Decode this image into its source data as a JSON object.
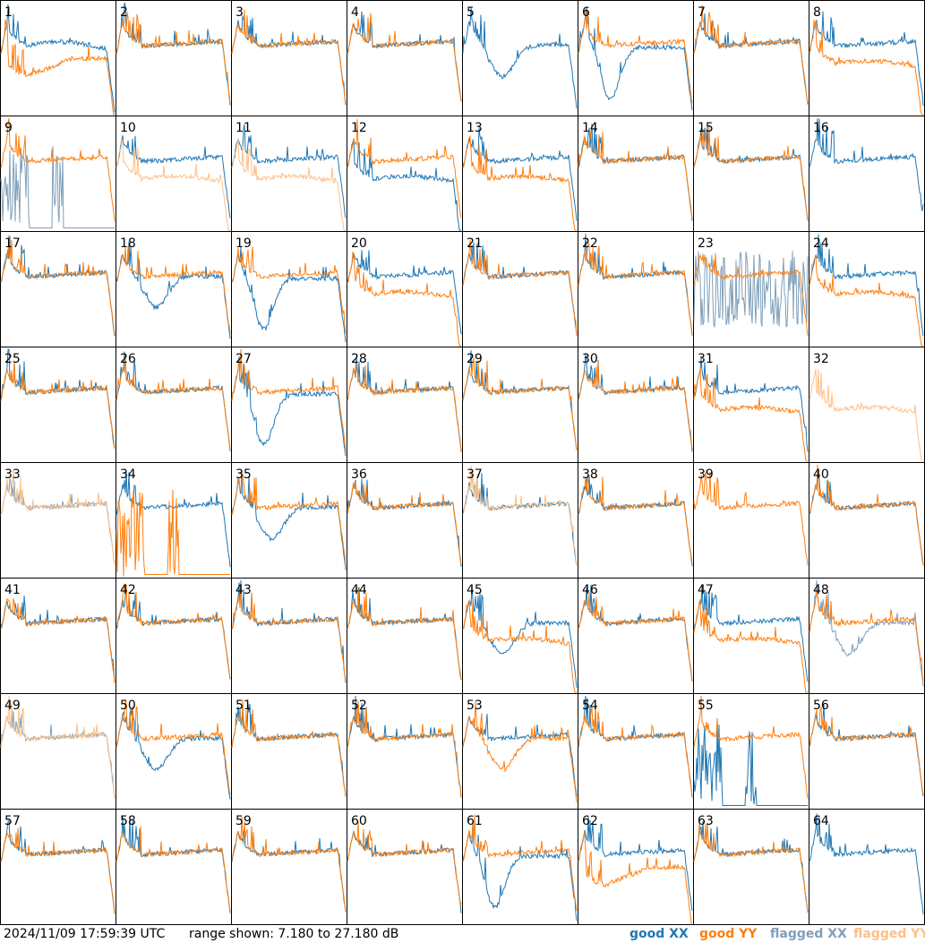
{
  "footer": {
    "timestamp": "2024/11/09 17:59:39 UTC",
    "range_text": "range shown: 7.180 to 27.180 dB"
  },
  "legend": {
    "good_xx": {
      "prefix": "good",
      "pol": "XX",
      "color": "#1f77b4"
    },
    "good_yy": {
      "prefix": "good",
      "pol": "YY",
      "color": "#ff7f0e"
    },
    "flagged_xx": {
      "prefix": "flagged",
      "pol": "XX",
      "color": "#7f9fba"
    },
    "flagged_yy": {
      "prefix": "flagged",
      "pol": "YY",
      "color": "#ffbf87"
    }
  },
  "chart_data": {
    "type": "line",
    "layout": "8x8 small multiples",
    "ylim": [
      7.18,
      27.18
    ],
    "yunits": "dB",
    "panels": [
      {
        "id": 1,
        "xx": "good",
        "yy": "good",
        "xx_shape": "hump",
        "yy_shape": "lowdip"
      },
      {
        "id": 2,
        "xx": "good",
        "yy": "good",
        "xx_shape": "plateau",
        "yy_shape": "plateau"
      },
      {
        "id": 3,
        "xx": "good",
        "yy": "good",
        "xx_shape": "plateau",
        "yy_shape": "plateau"
      },
      {
        "id": 4,
        "xx": "good",
        "yy": "good",
        "xx_shape": "plateau",
        "yy_shape": "plateau"
      },
      {
        "id": 5,
        "xx": "good",
        "yy": "none",
        "xx_shape": "dip",
        "yy_shape": "flat"
      },
      {
        "id": 6,
        "xx": "good",
        "yy": "good",
        "xx_shape": "deepdip",
        "yy_shape": "plateau"
      },
      {
        "id": 7,
        "xx": "good",
        "yy": "good",
        "xx_shape": "plateau",
        "yy_shape": "plateau"
      },
      {
        "id": 8,
        "xx": "good",
        "yy": "good",
        "xx_shape": "plateau",
        "yy_shape": "lowhump"
      },
      {
        "id": 9,
        "xx": "flagged",
        "yy": "good",
        "xx_shape": "spiky",
        "yy_shape": "plateau"
      },
      {
        "id": 10,
        "xx": "good",
        "yy": "flagged",
        "xx_shape": "plateau",
        "yy_shape": "lowhump"
      },
      {
        "id": 11,
        "xx": "good",
        "yy": "flagged",
        "xx_shape": "plateau",
        "yy_shape": "lowhump"
      },
      {
        "id": 12,
        "xx": "good",
        "yy": "good",
        "xx_shape": "lowhump",
        "yy_shape": "plateau"
      },
      {
        "id": 13,
        "xx": "good",
        "yy": "good",
        "xx_shape": "plateau",
        "yy_shape": "lowhump"
      },
      {
        "id": 14,
        "xx": "good",
        "yy": "good",
        "xx_shape": "plateau",
        "yy_shape": "plateau"
      },
      {
        "id": 15,
        "xx": "good",
        "yy": "good",
        "xx_shape": "plateau",
        "yy_shape": "plateau"
      },
      {
        "id": 16,
        "xx": "good",
        "yy": "none",
        "xx_shape": "plateau",
        "yy_shape": "flat"
      },
      {
        "id": 17,
        "xx": "good",
        "yy": "good",
        "xx_shape": "plateau",
        "yy_shape": "plateau"
      },
      {
        "id": 18,
        "xx": "good",
        "yy": "good",
        "xx_shape": "dip",
        "yy_shape": "plateau"
      },
      {
        "id": 19,
        "xx": "good",
        "yy": "good",
        "xx_shape": "deepdip",
        "yy_shape": "plateau"
      },
      {
        "id": 20,
        "xx": "good",
        "yy": "good",
        "xx_shape": "plateau",
        "yy_shape": "lowhump"
      },
      {
        "id": 21,
        "xx": "good",
        "yy": "good",
        "xx_shape": "plateau",
        "yy_shape": "plateau"
      },
      {
        "id": 22,
        "xx": "good",
        "yy": "good",
        "xx_shape": "plateau",
        "yy_shape": "plateau"
      },
      {
        "id": 23,
        "xx": "flagged",
        "yy": "good",
        "xx_shape": "noise",
        "yy_shape": "plateau"
      },
      {
        "id": 24,
        "xx": "good",
        "yy": "good",
        "xx_shape": "plateau",
        "yy_shape": "lowhump"
      },
      {
        "id": 25,
        "xx": "good",
        "yy": "good",
        "xx_shape": "plateau",
        "yy_shape": "plateau"
      },
      {
        "id": 26,
        "xx": "good",
        "yy": "good",
        "xx_shape": "plateau",
        "yy_shape": "plateau"
      },
      {
        "id": 27,
        "xx": "good",
        "yy": "good",
        "xx_shape": "deepdip",
        "yy_shape": "plateau"
      },
      {
        "id": 28,
        "xx": "good",
        "yy": "good",
        "xx_shape": "plateau",
        "yy_shape": "plateau"
      },
      {
        "id": 29,
        "xx": "good",
        "yy": "good",
        "xx_shape": "plateau",
        "yy_shape": "plateau"
      },
      {
        "id": 30,
        "xx": "good",
        "yy": "good",
        "xx_shape": "plateau",
        "yy_shape": "plateau"
      },
      {
        "id": 31,
        "xx": "good",
        "yy": "good",
        "xx_shape": "plateau",
        "yy_shape": "lowhump"
      },
      {
        "id": 32,
        "xx": "none",
        "yy": "flagged",
        "xx_shape": "flat",
        "yy_shape": "lowhump"
      },
      {
        "id": 33,
        "xx": "flagged",
        "yy": "flagged",
        "xx_shape": "plateau",
        "yy_shape": "plateau"
      },
      {
        "id": 34,
        "xx": "good",
        "yy": "good",
        "xx_shape": "plateau",
        "yy_shape": "spiky"
      },
      {
        "id": 35,
        "xx": "good",
        "yy": "good",
        "xx_shape": "dip",
        "yy_shape": "plateau"
      },
      {
        "id": 36,
        "xx": "good",
        "yy": "good",
        "xx_shape": "plateau",
        "yy_shape": "plateau"
      },
      {
        "id": 37,
        "xx": "good",
        "yy": "flagged",
        "xx_shape": "plateau",
        "yy_shape": "plateau"
      },
      {
        "id": 38,
        "xx": "good",
        "yy": "good",
        "xx_shape": "plateau",
        "yy_shape": "plateau"
      },
      {
        "id": 39,
        "xx": "none",
        "yy": "good",
        "xx_shape": "flat",
        "yy_shape": "plateau"
      },
      {
        "id": 40,
        "xx": "good",
        "yy": "good",
        "xx_shape": "plateau",
        "yy_shape": "plateau"
      },
      {
        "id": 41,
        "xx": "good",
        "yy": "good",
        "xx_shape": "plateau",
        "yy_shape": "plateau"
      },
      {
        "id": 42,
        "xx": "good",
        "yy": "good",
        "xx_shape": "plateau",
        "yy_shape": "plateau"
      },
      {
        "id": 43,
        "xx": "good",
        "yy": "good",
        "xx_shape": "plateau",
        "yy_shape": "plateau"
      },
      {
        "id": 44,
        "xx": "good",
        "yy": "good",
        "xx_shape": "plateau",
        "yy_shape": "plateau"
      },
      {
        "id": 45,
        "xx": "good",
        "yy": "good",
        "xx_shape": "dip",
        "yy_shape": "lowhump"
      },
      {
        "id": 46,
        "xx": "good",
        "yy": "good",
        "xx_shape": "plateau",
        "yy_shape": "plateau"
      },
      {
        "id": 47,
        "xx": "good",
        "yy": "good",
        "xx_shape": "plateau",
        "yy_shape": "lowhump"
      },
      {
        "id": 48,
        "xx": "flagged",
        "yy": "good",
        "xx_shape": "dip",
        "yy_shape": "plateau"
      },
      {
        "id": 49,
        "xx": "flagged",
        "yy": "flagged",
        "xx_shape": "plateau",
        "yy_shape": "plateau"
      },
      {
        "id": 50,
        "xx": "good",
        "yy": "good",
        "xx_shape": "dip",
        "yy_shape": "plateau"
      },
      {
        "id": 51,
        "xx": "good",
        "yy": "good",
        "xx_shape": "plateau",
        "yy_shape": "plateau"
      },
      {
        "id": 52,
        "xx": "good",
        "yy": "good",
        "xx_shape": "plateau",
        "yy_shape": "plateau"
      },
      {
        "id": 53,
        "xx": "good",
        "yy": "good",
        "xx_shape": "plateau",
        "yy_shape": "dip"
      },
      {
        "id": 54,
        "xx": "good",
        "yy": "good",
        "xx_shape": "plateau",
        "yy_shape": "plateau"
      },
      {
        "id": 55,
        "xx": "good",
        "yy": "good",
        "xx_shape": "spiky",
        "yy_shape": "plateau"
      },
      {
        "id": 56,
        "xx": "good",
        "yy": "good",
        "xx_shape": "plateau",
        "yy_shape": "plateau"
      },
      {
        "id": 57,
        "xx": "good",
        "yy": "good",
        "xx_shape": "plateau",
        "yy_shape": "plateau"
      },
      {
        "id": 58,
        "xx": "good",
        "yy": "good",
        "xx_shape": "plateau",
        "yy_shape": "plateau"
      },
      {
        "id": 59,
        "xx": "good",
        "yy": "good",
        "xx_shape": "plateau",
        "yy_shape": "plateau"
      },
      {
        "id": 60,
        "xx": "good",
        "yy": "good",
        "xx_shape": "plateau",
        "yy_shape": "plateau"
      },
      {
        "id": 61,
        "xx": "good",
        "yy": "good",
        "xx_shape": "deepdip",
        "yy_shape": "plateau"
      },
      {
        "id": 62,
        "xx": "good",
        "yy": "good",
        "xx_shape": "plateau",
        "yy_shape": "lowdip"
      },
      {
        "id": 63,
        "xx": "good",
        "yy": "good",
        "xx_shape": "plateau",
        "yy_shape": "plateau"
      },
      {
        "id": 64,
        "xx": "good",
        "yy": "none",
        "xx_shape": "plateau",
        "yy_shape": "flat"
      }
    ]
  }
}
